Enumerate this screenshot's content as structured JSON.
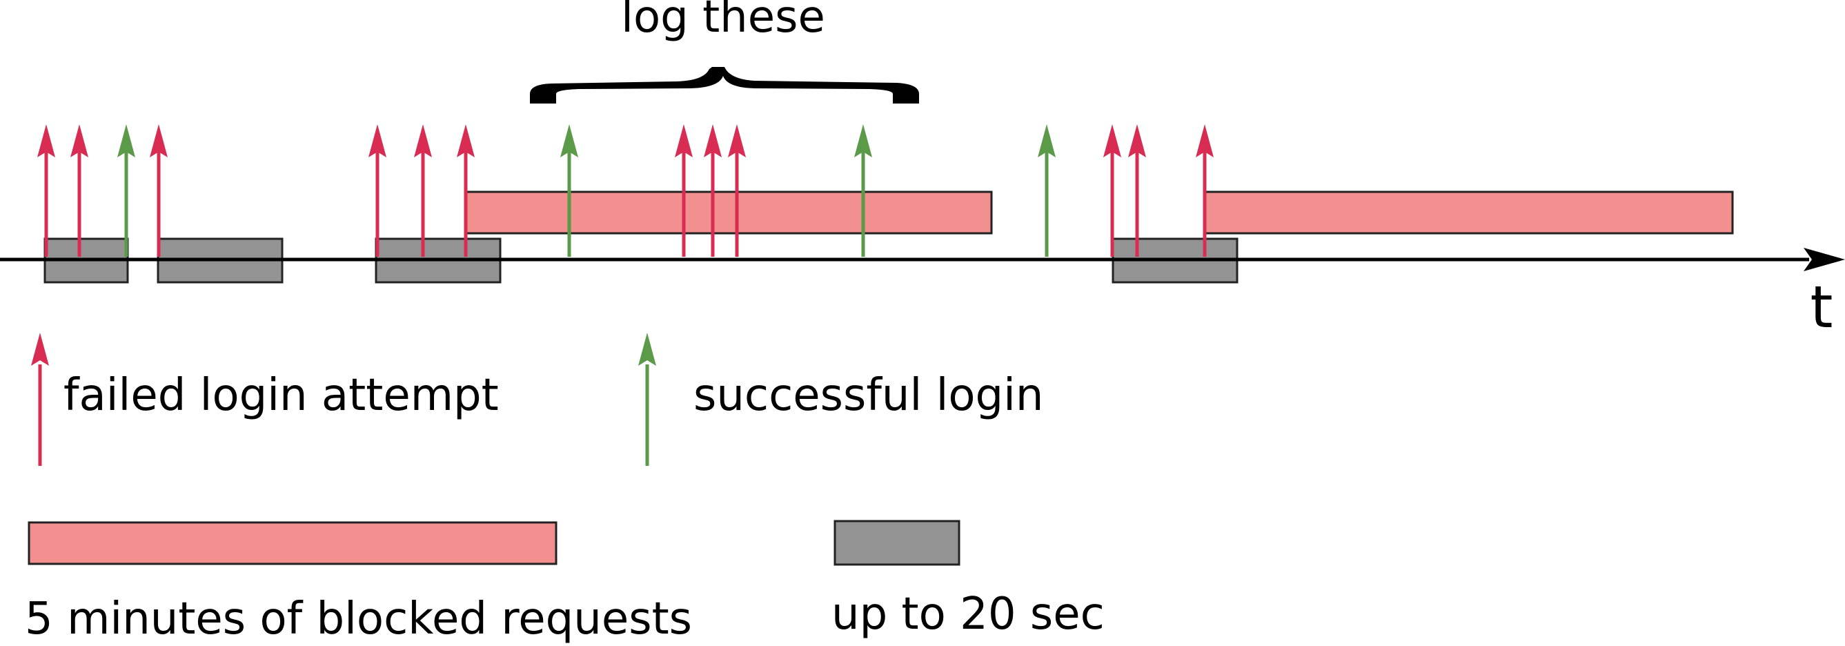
{
  "diagram": {
    "axis_label": "t",
    "bracket_label": "log these",
    "colors": {
      "failed": "#d82c52",
      "success": "#5a9a48",
      "blocked_fill": "#f28f8f",
      "wait_fill": "#939393",
      "axis": "#000000"
    },
    "events": [
      {
        "type": "failed"
      },
      {
        "type": "failed"
      },
      {
        "type": "success"
      },
      {
        "type": "failed"
      },
      {
        "type": "failed"
      },
      {
        "type": "failed"
      },
      {
        "type": "failed"
      },
      {
        "type": "success"
      },
      {
        "type": "failed"
      },
      {
        "type": "failed"
      },
      {
        "type": "failed"
      },
      {
        "type": "success"
      },
      {
        "type": "success"
      },
      {
        "type": "failed"
      },
      {
        "type": "failed"
      },
      {
        "type": "failed"
      }
    ]
  },
  "legend": {
    "failed_label": "failed login attempt",
    "success_label": "successful login",
    "blocked_label": "5 minutes of blocked requests",
    "wait_label": "up to 20 sec"
  }
}
